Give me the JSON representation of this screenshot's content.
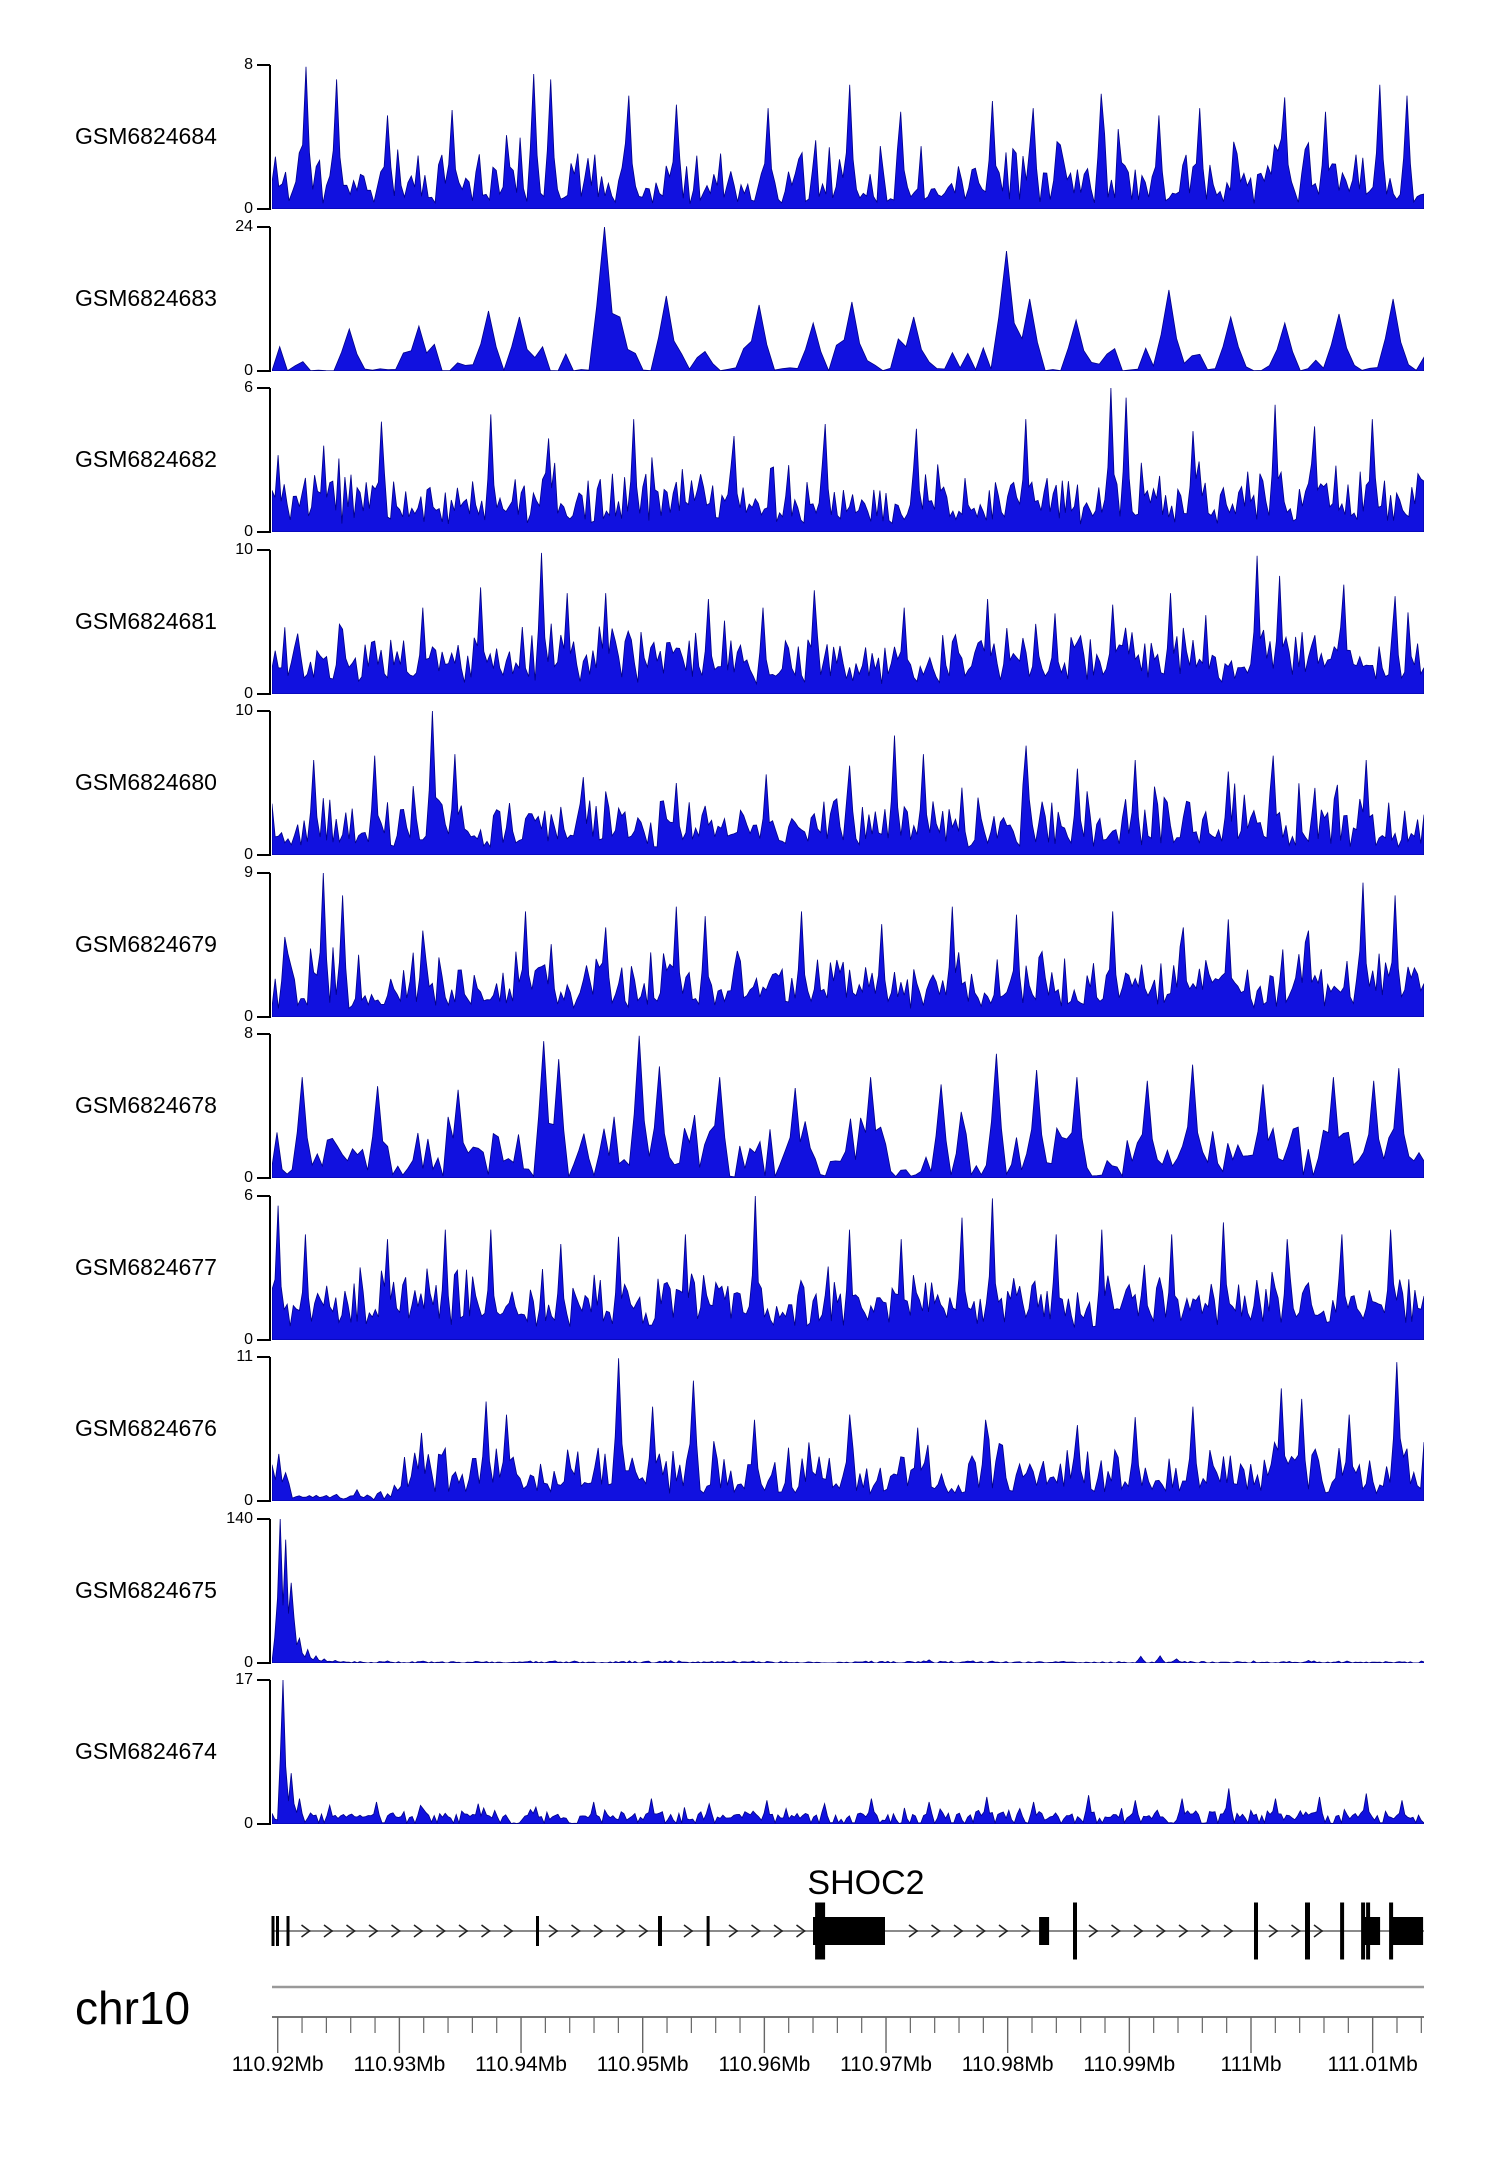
{
  "chart_data": {
    "type": "area",
    "title": "",
    "region": {
      "chromosome": "chr10",
      "start_mb": 110.91953,
      "end_mb": 111.01422,
      "unit": "Mb"
    },
    "x_axis": {
      "major_ticks_mb": [
        110.92,
        110.93,
        110.94,
        110.95,
        110.96,
        110.97,
        110.98,
        110.99,
        111.0,
        111.01
      ],
      "major_labels": [
        "110.92Mb",
        "110.93Mb",
        "110.94Mb",
        "110.95Mb",
        "110.96Mb",
        "110.97Mb",
        "110.98Mb",
        "110.99Mb",
        "111Mb",
        "111.01Mb"
      ],
      "minor_tick_step_mb": 0.002
    },
    "axis_zero_label": "0",
    "tracks": [
      {
        "name": "GSM6824684",
        "ymax": 8,
        "ymin": 0,
        "render": {
          "n": 340,
          "seed": 11,
          "floor": 0.07,
          "amp": 0.5,
          "pow": 2.0,
          "sparse": 0
        },
        "peaks": [
          [
            0.03,
            7.9
          ],
          [
            0.055,
            7.2
          ],
          [
            0.1,
            5.2
          ],
          [
            0.155,
            5.5
          ],
          [
            0.228,
            7.5
          ],
          [
            0.243,
            7.2
          ],
          [
            0.31,
            6.3
          ],
          [
            0.35,
            5.8
          ],
          [
            0.43,
            5.6
          ],
          [
            0.5,
            6.9
          ],
          [
            0.545,
            5.4
          ],
          [
            0.625,
            6.0
          ],
          [
            0.66,
            5.6
          ],
          [
            0.72,
            6.4
          ],
          [
            0.77,
            5.2
          ],
          [
            0.805,
            5.6
          ],
          [
            0.88,
            6.2
          ],
          [
            0.915,
            5.4
          ],
          [
            0.962,
            6.9
          ],
          [
            0.985,
            6.3
          ]
        ]
      },
      {
        "name": "GSM6824683",
        "ymax": 24,
        "ymin": 0,
        "render": {
          "n": 150,
          "seed": 22,
          "floor": 0.012,
          "amp": 0.28,
          "pow": 2.6,
          "sparse": 0.45
        },
        "peaks": [
          [
            0.065,
            7
          ],
          [
            0.13,
            7.5
          ],
          [
            0.19,
            10
          ],
          [
            0.215,
            9
          ],
          [
            0.29,
            24
          ],
          [
            0.305,
            9
          ],
          [
            0.345,
            12.5
          ],
          [
            0.42,
            11
          ],
          [
            0.47,
            8
          ],
          [
            0.5,
            11.5
          ],
          [
            0.56,
            9
          ],
          [
            0.635,
            20
          ],
          [
            0.655,
            12
          ],
          [
            0.7,
            8.5
          ],
          [
            0.78,
            13.5
          ],
          [
            0.83,
            9
          ],
          [
            0.88,
            8
          ],
          [
            0.925,
            9.5
          ],
          [
            0.97,
            12
          ]
        ]
      },
      {
        "name": "GSM6824682",
        "ymax": 6,
        "ymin": 0,
        "render": {
          "n": 380,
          "seed": 33,
          "floor": 0.1,
          "amp": 0.42,
          "pow": 2.1,
          "sparse": 0
        },
        "peaks": [
          [
            0.005,
            3.2
          ],
          [
            0.045,
            3.6
          ],
          [
            0.095,
            4.6
          ],
          [
            0.19,
            4.9
          ],
          [
            0.24,
            3.9
          ],
          [
            0.315,
            4.7
          ],
          [
            0.4,
            4.0
          ],
          [
            0.48,
            4.5
          ],
          [
            0.56,
            4.3
          ],
          [
            0.655,
            4.7
          ],
          [
            0.728,
            6.0
          ],
          [
            0.742,
            5.6
          ],
          [
            0.8,
            4.2
          ],
          [
            0.87,
            5.3
          ],
          [
            0.905,
            4.4
          ],
          [
            0.955,
            4.7
          ]
        ]
      },
      {
        "name": "GSM6824681",
        "ymax": 10,
        "ymin": 0,
        "render": {
          "n": 360,
          "seed": 44,
          "floor": 0.13,
          "amp": 0.42,
          "pow": 2.0,
          "sparse": 0
        },
        "peaks": [
          [
            0.06,
            4.5
          ],
          [
            0.13,
            6.0
          ],
          [
            0.18,
            7.4
          ],
          [
            0.235,
            9.8
          ],
          [
            0.255,
            7.0
          ],
          [
            0.29,
            7.0
          ],
          [
            0.38,
            6.6
          ],
          [
            0.425,
            6.0
          ],
          [
            0.47,
            7.2
          ],
          [
            0.55,
            6.0
          ],
          [
            0.62,
            6.6
          ],
          [
            0.68,
            5.6
          ],
          [
            0.73,
            6.2
          ],
          [
            0.78,
            7.0
          ],
          [
            0.855,
            9.6
          ],
          [
            0.875,
            8.2
          ],
          [
            0.93,
            7.6
          ],
          [
            0.975,
            6.8
          ]
        ]
      },
      {
        "name": "GSM6824680",
        "ymax": 10,
        "ymin": 0,
        "render": {
          "n": 360,
          "seed": 55,
          "floor": 0.1,
          "amp": 0.4,
          "pow": 2.1,
          "sparse": 0
        },
        "peaks": [
          [
            0.035,
            6.6
          ],
          [
            0.09,
            6.9
          ],
          [
            0.14,
            10.0
          ],
          [
            0.16,
            7.0
          ],
          [
            0.27,
            5.4
          ],
          [
            0.35,
            5.0
          ],
          [
            0.43,
            5.6
          ],
          [
            0.5,
            6.2
          ],
          [
            0.54,
            8.3
          ],
          [
            0.565,
            7.0
          ],
          [
            0.655,
            7.6
          ],
          [
            0.7,
            6.0
          ],
          [
            0.75,
            6.6
          ],
          [
            0.83,
            5.8
          ],
          [
            0.87,
            6.9
          ],
          [
            0.95,
            6.6
          ]
        ]
      },
      {
        "name": "GSM6824679",
        "ymax": 9,
        "ymin": 0,
        "render": {
          "n": 360,
          "seed": 66,
          "floor": 0.11,
          "amp": 0.42,
          "pow": 2.1,
          "sparse": 0
        },
        "peaks": [
          [
            0.012,
            5.0
          ],
          [
            0.045,
            9.0
          ],
          [
            0.062,
            7.6
          ],
          [
            0.13,
            5.4
          ],
          [
            0.22,
            6.6
          ],
          [
            0.29,
            5.6
          ],
          [
            0.35,
            6.9
          ],
          [
            0.375,
            6.3
          ],
          [
            0.46,
            6.6
          ],
          [
            0.53,
            5.8
          ],
          [
            0.59,
            6.9
          ],
          [
            0.645,
            6.4
          ],
          [
            0.73,
            6.6
          ],
          [
            0.79,
            5.6
          ],
          [
            0.83,
            6.1
          ],
          [
            0.9,
            5.4
          ],
          [
            0.948,
            8.4
          ],
          [
            0.975,
            7.6
          ]
        ]
      },
      {
        "name": "GSM6824678",
        "ymax": 8,
        "ymin": 0,
        "render": {
          "n": 230,
          "seed": 77,
          "floor": 0.09,
          "amp": 0.42,
          "pow": 2.2,
          "sparse": 0.18
        },
        "peaks": [
          [
            0.025,
            5.6
          ],
          [
            0.09,
            5.1
          ],
          [
            0.16,
            4.9
          ],
          [
            0.235,
            7.6
          ],
          [
            0.25,
            6.6
          ],
          [
            0.32,
            7.9
          ],
          [
            0.335,
            6.2
          ],
          [
            0.39,
            5.6
          ],
          [
            0.455,
            5.0
          ],
          [
            0.52,
            5.6
          ],
          [
            0.58,
            5.2
          ],
          [
            0.63,
            6.9
          ],
          [
            0.665,
            6.0
          ],
          [
            0.7,
            5.6
          ],
          [
            0.76,
            5.4
          ],
          [
            0.8,
            6.3
          ],
          [
            0.86,
            5.2
          ],
          [
            0.92,
            5.6
          ],
          [
            0.955,
            5.4
          ],
          [
            0.98,
            6.1
          ]
        ]
      },
      {
        "name": "GSM6824677",
        "ymax": 6,
        "ymin": 0,
        "render": {
          "n": 380,
          "seed": 88,
          "floor": 0.16,
          "amp": 0.4,
          "pow": 2.0,
          "sparse": 0
        },
        "peaks": [
          [
            0.004,
            5.6
          ],
          [
            0.03,
            4.4
          ],
          [
            0.1,
            4.2
          ],
          [
            0.15,
            4.6
          ],
          [
            0.19,
            4.6
          ],
          [
            0.25,
            4.0
          ],
          [
            0.3,
            4.3
          ],
          [
            0.36,
            4.4
          ],
          [
            0.42,
            6.0
          ],
          [
            0.5,
            4.6
          ],
          [
            0.545,
            4.2
          ],
          [
            0.6,
            5.1
          ],
          [
            0.625,
            5.9
          ],
          [
            0.68,
            4.4
          ],
          [
            0.72,
            4.6
          ],
          [
            0.78,
            4.4
          ],
          [
            0.825,
            4.9
          ],
          [
            0.88,
            4.2
          ],
          [
            0.93,
            4.4
          ],
          [
            0.97,
            4.6
          ]
        ]
      },
      {
        "name": "GSM6824676",
        "ymax": 11,
        "ymin": 0,
        "render": {
          "n": 340,
          "seed": 99,
          "floor": 0.08,
          "amp": 0.38,
          "pow": 2.1,
          "sparse": 0,
          "damp": [
            0.015,
            0.105,
            0.2
          ]
        },
        "peaks": [
          [
            0.005,
            3.6
          ],
          [
            0.13,
            5.2
          ],
          [
            0.185,
            7.6
          ],
          [
            0.205,
            6.6
          ],
          [
            0.3,
            10.9
          ],
          [
            0.33,
            7.2
          ],
          [
            0.365,
            9.2
          ],
          [
            0.42,
            6.2
          ],
          [
            0.5,
            6.6
          ],
          [
            0.56,
            5.6
          ],
          [
            0.62,
            6.2
          ],
          [
            0.7,
            5.8
          ],
          [
            0.75,
            6.4
          ],
          [
            0.8,
            7.2
          ],
          [
            0.875,
            8.6
          ],
          [
            0.895,
            7.8
          ],
          [
            0.935,
            6.6
          ],
          [
            0.975,
            10.6
          ]
        ]
      },
      {
        "name": "GSM6824675",
        "ymax": 140,
        "ymin": 0,
        "render": {
          "n": 420,
          "seed": 110,
          "floor": 0.004,
          "amp": 0.012,
          "pow": 2.0,
          "sparse": 0.3
        },
        "peaks": [
          [
            0.004,
            55
          ],
          [
            0.008,
            140
          ],
          [
            0.012,
            120
          ],
          [
            0.016,
            78
          ],
          [
            0.02,
            44
          ],
          [
            0.025,
            24
          ],
          [
            0.03,
            13
          ],
          [
            0.037,
            7
          ],
          [
            0.045,
            4
          ],
          [
            0.055,
            2.5
          ],
          [
            0.4,
            2
          ],
          [
            0.57,
            3
          ],
          [
            0.755,
            6.5
          ],
          [
            0.77,
            7.0
          ],
          [
            0.785,
            4
          ],
          [
            0.9,
            2.5
          ]
        ]
      },
      {
        "name": "GSM6824674",
        "ymax": 17,
        "ymin": 0,
        "render": {
          "n": 420,
          "seed": 121,
          "floor": 0.045,
          "amp": 0.06,
          "pow": 2.0,
          "sparse": 0.25
        },
        "peaks": [
          [
            0.01,
            17
          ],
          [
            0.016,
            6
          ],
          [
            0.025,
            3
          ],
          [
            0.05,
            2.2
          ],
          [
            0.09,
            2.6
          ],
          [
            0.13,
            2.2
          ],
          [
            0.18,
            2.4
          ],
          [
            0.23,
            2.0
          ],
          [
            0.28,
            2.6
          ],
          [
            0.33,
            3.0
          ],
          [
            0.38,
            2.4
          ],
          [
            0.43,
            2.8
          ],
          [
            0.48,
            2.4
          ],
          [
            0.52,
            3.0
          ],
          [
            0.57,
            2.6
          ],
          [
            0.62,
            3.2
          ],
          [
            0.66,
            2.6
          ],
          [
            0.71,
            3.4
          ],
          [
            0.75,
            2.8
          ],
          [
            0.79,
            3.0
          ],
          [
            0.83,
            4.2
          ],
          [
            0.87,
            3.0
          ],
          [
            0.91,
            3.2
          ],
          [
            0.95,
            3.6
          ],
          [
            0.98,
            2.8
          ]
        ]
      }
    ],
    "gene_track": {
      "gene_name": "SHOC2",
      "strand": "+",
      "features": [
        {
          "start_mb": 110.91949,
          "end_mb": 110.91974,
          "kind": "bar"
        },
        {
          "start_mb": 110.91986,
          "end_mb": 110.92011,
          "kind": "bar"
        },
        {
          "start_mb": 110.92072,
          "end_mb": 110.92097,
          "kind": "bar"
        },
        {
          "start_mb": 110.94123,
          "end_mb": 110.94148,
          "kind": "bar"
        },
        {
          "start_mb": 110.95126,
          "end_mb": 110.95159,
          "kind": "bar"
        },
        {
          "start_mb": 110.95525,
          "end_mb": 110.95549,
          "kind": "bar"
        },
        {
          "start_mb": 110.96417,
          "end_mb": 110.96499,
          "kind": "tall"
        },
        {
          "start_mb": 110.964,
          "end_mb": 110.96992,
          "kind": "exon"
        },
        {
          "start_mb": 110.98258,
          "end_mb": 110.9834,
          "kind": "exon"
        },
        {
          "start_mb": 110.98537,
          "end_mb": 110.9857,
          "kind": "tall"
        },
        {
          "start_mb": 111.00025,
          "end_mb": 111.00058,
          "kind": "tall"
        },
        {
          "start_mb": 111.00444,
          "end_mb": 111.00485,
          "kind": "tall"
        },
        {
          "start_mb": 111.00732,
          "end_mb": 111.00765,
          "kind": "tall"
        },
        {
          "start_mb": 111.00905,
          "end_mb": 111.00938,
          "kind": "tall"
        },
        {
          "start_mb": 111.00946,
          "end_mb": 111.00979,
          "kind": "tall"
        },
        {
          "start_mb": 111.00913,
          "end_mb": 111.01061,
          "kind": "exon"
        },
        {
          "start_mb": 111.01135,
          "end_mb": 111.01168,
          "kind": "tall"
        },
        {
          "start_mb": 111.0116,
          "end_mb": 111.01415,
          "kind": "exon"
        }
      ]
    }
  },
  "style": {
    "track_fill": "#1111df",
    "track_stroke": "#000088",
    "exon_color": "#000000",
    "intron_line_color": "#8a8a8a",
    "chevron_color": "#222222",
    "ruler_line_color": "#999999",
    "tick_color": "#666666",
    "text_color": "#000000"
  }
}
